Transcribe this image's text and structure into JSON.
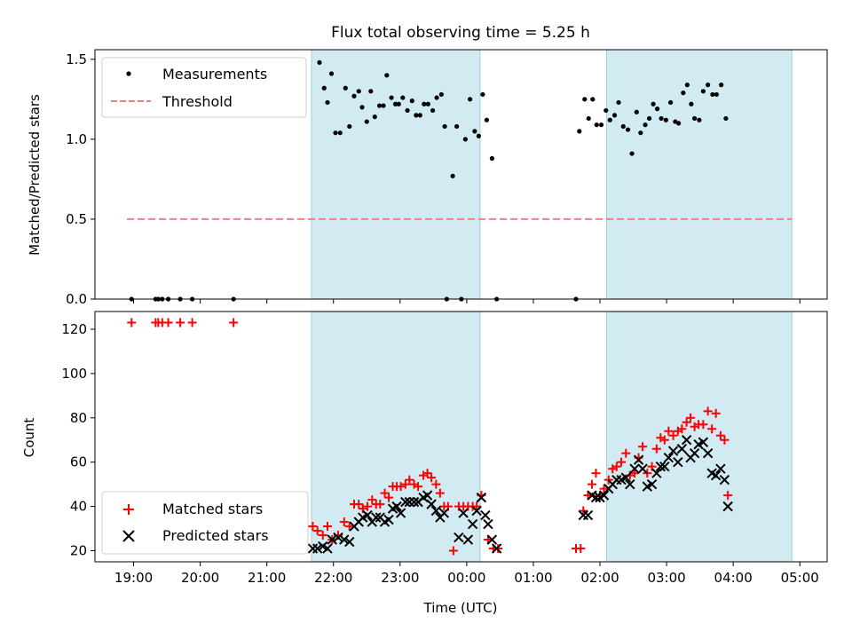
{
  "chart_data": [
    {
      "type": "scatter",
      "title": "Flux total observing time = 5.25 h",
      "ylabel": "Matched/Predicted stars",
      "xlim": [
        -0.58,
        10.41
      ],
      "ylim": [
        0,
        1.56
      ],
      "yticks": [
        0.0,
        0.5,
        1.0,
        1.5
      ],
      "ytick_labels": [
        "0.0",
        "0.5",
        "1.0",
        "1.5"
      ],
      "legend": {
        "position": "top-left",
        "entries": [
          "Measurements",
          "Threshold"
        ]
      },
      "threshold": {
        "y": 0.5,
        "x_start": -0.1,
        "x_end": 9.88,
        "color": "#f08080"
      },
      "series": [
        {
          "name": "Measurements",
          "color": "#000000",
          "points": [
            [
              -0.03,
              0
            ],
            [
              0.33,
              0
            ],
            [
              0.37,
              0
            ],
            [
              0.43,
              0
            ],
            [
              0.52,
              0
            ],
            [
              0.7,
              0
            ],
            [
              0.88,
              0
            ],
            [
              1.5,
              0
            ],
            [
              2.79,
              1.48
            ],
            [
              2.86,
              1.32
            ],
            [
              2.91,
              1.23
            ],
            [
              2.97,
              1.41
            ],
            [
              3.03,
              1.04
            ],
            [
              3.1,
              1.04
            ],
            [
              3.18,
              1.32
            ],
            [
              3.24,
              1.08
            ],
            [
              3.31,
              1.27
            ],
            [
              3.38,
              1.3
            ],
            [
              3.43,
              1.2
            ],
            [
              3.5,
              1.11
            ],
            [
              3.56,
              1.3
            ],
            [
              3.62,
              1.14
            ],
            [
              3.69,
              1.21
            ],
            [
              3.75,
              1.21
            ],
            [
              3.8,
              1.4
            ],
            [
              3.87,
              1.26
            ],
            [
              3.93,
              1.22
            ],
            [
              3.98,
              1.22
            ],
            [
              4.04,
              1.26
            ],
            [
              4.11,
              1.18
            ],
            [
              4.18,
              1.24
            ],
            [
              4.24,
              1.15
            ],
            [
              4.3,
              1.15
            ],
            [
              4.36,
              1.22
            ],
            [
              4.42,
              1.22
            ],
            [
              4.49,
              1.18
            ],
            [
              4.55,
              1.26
            ],
            [
              4.62,
              1.28
            ],
            [
              4.67,
              1.08
            ],
            [
              4.7,
              0
            ],
            [
              4.79,
              0.77
            ],
            [
              4.85,
              1.08
            ],
            [
              4.92,
              0
            ],
            [
              4.98,
              1.0
            ],
            [
              5.05,
              1.25
            ],
            [
              5.12,
              1.05
            ],
            [
              5.18,
              1.02
            ],
            [
              5.24,
              1.28
            ],
            [
              5.3,
              1.12
            ],
            [
              5.38,
              0.88
            ],
            [
              5.45,
              0
            ],
            [
              6.64,
              0
            ],
            [
              6.69,
              1.05
            ],
            [
              6.77,
              1.25
            ],
            [
              6.83,
              1.13
            ],
            [
              6.89,
              1.25
            ],
            [
              6.95,
              1.09
            ],
            [
              7.02,
              1.09
            ],
            [
              7.09,
              1.18
            ],
            [
              7.15,
              1.12
            ],
            [
              7.22,
              1.15
            ],
            [
              7.28,
              1.23
            ],
            [
              7.35,
              1.08
            ],
            [
              7.42,
              1.06
            ],
            [
              7.48,
              0.91
            ],
            [
              7.55,
              1.17
            ],
            [
              7.61,
              1.04
            ],
            [
              7.68,
              1.09
            ],
            [
              7.74,
              1.13
            ],
            [
              7.8,
              1.22
            ],
            [
              7.86,
              1.19
            ],
            [
              7.92,
              1.13
            ],
            [
              7.99,
              1.12
            ],
            [
              8.06,
              1.23
            ],
            [
              8.13,
              1.11
            ],
            [
              8.18,
              1.1
            ],
            [
              8.25,
              1.29
            ],
            [
              8.31,
              1.34
            ],
            [
              8.37,
              1.22
            ],
            [
              8.42,
              1.13
            ],
            [
              8.49,
              1.12
            ],
            [
              8.55,
              1.3
            ],
            [
              8.62,
              1.34
            ],
            [
              8.69,
              1.28
            ],
            [
              8.75,
              1.28
            ],
            [
              8.82,
              1.34
            ],
            [
              8.89,
              1.13
            ]
          ]
        }
      ],
      "shaded_regions": [
        [
          2.67,
          5.2
        ],
        [
          7.1,
          9.88
        ]
      ]
    },
    {
      "type": "scatter",
      "xlabel": "Time (UTC)",
      "ylabel": "Count",
      "xlim": [
        -0.58,
        10.41
      ],
      "ylim": [
        15,
        128
      ],
      "yticks": [
        20,
        40,
        60,
        80,
        100,
        120
      ],
      "ytick_labels": [
        "20",
        "40",
        "60",
        "80",
        "100",
        "120"
      ],
      "xticks": [
        0,
        1,
        2,
        3,
        4,
        5,
        6,
        7,
        8,
        9,
        10
      ],
      "xtick_labels": [
        "19:00",
        "20:00",
        "21:00",
        "22:00",
        "23:00",
        "00:00",
        "01:00",
        "02:00",
        "03:00",
        "04:00",
        "05:00"
      ],
      "legend": {
        "position": "bottom-left",
        "entries": [
          "Matched stars",
          "Predicted stars"
        ]
      },
      "shaded_regions": [
        [
          2.67,
          5.2
        ],
        [
          7.1,
          9.88
        ]
      ],
      "series": [
        {
          "name": "Matched stars",
          "marker": "+",
          "color": "#ff0000",
          "points": [
            [
              -0.03,
              123
            ],
            [
              0.33,
              123
            ],
            [
              0.37,
              123
            ],
            [
              0.43,
              123
            ],
            [
              0.52,
              123
            ],
            [
              0.7,
              123
            ],
            [
              0.88,
              123
            ],
            [
              1.5,
              123
            ],
            [
              2.69,
              31
            ],
            [
              2.76,
              29
            ],
            [
              2.84,
              27
            ],
            [
              2.91,
              31
            ],
            [
              2.98,
              25
            ],
            [
              3.07,
              27
            ],
            [
              3.16,
              33
            ],
            [
              3.24,
              31
            ],
            [
              3.31,
              41
            ],
            [
              3.38,
              41
            ],
            [
              3.44,
              39
            ],
            [
              3.51,
              40
            ],
            [
              3.58,
              43
            ],
            [
              3.64,
              41
            ],
            [
              3.7,
              41
            ],
            [
              3.77,
              46
            ],
            [
              3.83,
              44
            ],
            [
              3.89,
              49
            ],
            [
              3.95,
              49
            ],
            [
              4.01,
              49
            ],
            [
              4.08,
              50
            ],
            [
              4.14,
              52
            ],
            [
              4.21,
              50
            ],
            [
              4.27,
              49
            ],
            [
              4.35,
              54
            ],
            [
              4.41,
              55
            ],
            [
              4.47,
              53
            ],
            [
              4.54,
              50
            ],
            [
              4.6,
              46
            ],
            [
              4.66,
              40
            ],
            [
              4.72,
              40
            ],
            [
              4.8,
              20
            ],
            [
              4.88,
              40
            ],
            [
              4.95,
              40
            ],
            [
              5.02,
              40
            ],
            [
              5.09,
              40
            ],
            [
              5.15,
              40
            ],
            [
              5.22,
              45
            ],
            [
              5.32,
              25
            ],
            [
              5.4,
              21
            ],
            [
              5.47,
              21
            ],
            [
              6.64,
              21
            ],
            [
              6.71,
              21
            ],
            [
              6.75,
              38
            ],
            [
              6.82,
              45
            ],
            [
              6.88,
              50
            ],
            [
              6.94,
              55
            ],
            [
              7.0,
              45
            ],
            [
              7.06,
              48
            ],
            [
              7.13,
              52
            ],
            [
              7.19,
              57
            ],
            [
              7.25,
              58
            ],
            [
              7.32,
              60
            ],
            [
              7.39,
              64
            ],
            [
              7.45,
              54
            ],
            [
              7.52,
              55
            ],
            [
              7.58,
              62
            ],
            [
              7.64,
              67
            ],
            [
              7.71,
              55
            ],
            [
              7.78,
              58
            ],
            [
              7.85,
              66
            ],
            [
              7.91,
              71
            ],
            [
              7.97,
              70
            ],
            [
              8.03,
              74
            ],
            [
              8.1,
              72
            ],
            [
              8.17,
              74
            ],
            [
              8.23,
              75
            ],
            [
              8.3,
              78
            ],
            [
              8.36,
              80
            ],
            [
              8.42,
              76
            ],
            [
              8.48,
              77
            ],
            [
              8.55,
              77
            ],
            [
              8.62,
              83
            ],
            [
              8.68,
              75
            ],
            [
              8.74,
              82
            ],
            [
              8.81,
              72
            ],
            [
              8.87,
              70
            ],
            [
              8.92,
              45
            ]
          ]
        },
        {
          "name": "Predicted stars",
          "marker": "x",
          "color": "#000000",
          "points": [
            [
              2.69,
              21
            ],
            [
              2.76,
              21
            ],
            [
              2.84,
              22
            ],
            [
              2.91,
              21
            ],
            [
              2.98,
              25
            ],
            [
              3.07,
              26
            ],
            [
              3.16,
              25
            ],
            [
              3.24,
              24
            ],
            [
              3.31,
              31
            ],
            [
              3.38,
              33
            ],
            [
              3.44,
              35
            ],
            [
              3.51,
              36
            ],
            [
              3.58,
              33
            ],
            [
              3.64,
              35
            ],
            [
              3.7,
              35
            ],
            [
              3.77,
              33
            ],
            [
              3.83,
              34
            ],
            [
              3.89,
              39
            ],
            [
              3.95,
              40
            ],
            [
              4.01,
              37
            ],
            [
              4.08,
              42
            ],
            [
              4.14,
              42
            ],
            [
              4.21,
              42
            ],
            [
              4.27,
              42
            ],
            [
              4.35,
              44
            ],
            [
              4.41,
              45
            ],
            [
              4.47,
              41
            ],
            [
              4.54,
              38
            ],
            [
              4.6,
              35
            ],
            [
              4.66,
              37
            ],
            [
              4.88,
              26
            ],
            [
              4.95,
              37
            ],
            [
              5.02,
              25
            ],
            [
              5.09,
              32
            ],
            [
              5.15,
              38
            ],
            [
              5.22,
              44
            ],
            [
              5.28,
              36
            ],
            [
              5.32,
              32
            ],
            [
              5.38,
              25
            ],
            [
              5.45,
              21
            ],
            [
              6.75,
              36
            ],
            [
              6.82,
              36
            ],
            [
              6.88,
              45
            ],
            [
              6.94,
              44
            ],
            [
              7.0,
              44
            ],
            [
              7.06,
              45
            ],
            [
              7.13,
              48
            ],
            [
              7.19,
              50
            ],
            [
              7.25,
              52
            ],
            [
              7.32,
              52
            ],
            [
              7.39,
              53
            ],
            [
              7.45,
              50
            ],
            [
              7.52,
              57
            ],
            [
              7.58,
              61
            ],
            [
              7.64,
              57
            ],
            [
              7.71,
              49
            ],
            [
              7.78,
              50
            ],
            [
              7.85,
              55
            ],
            [
              7.91,
              58
            ],
            [
              7.97,
              58
            ],
            [
              8.03,
              62
            ],
            [
              8.1,
              65
            ],
            [
              8.17,
              60
            ],
            [
              8.23,
              66
            ],
            [
              8.3,
              70
            ],
            [
              8.36,
              62
            ],
            [
              8.42,
              64
            ],
            [
              8.48,
              68
            ],
            [
              8.55,
              69
            ],
            [
              8.62,
              64
            ],
            [
              8.68,
              55
            ],
            [
              8.74,
              54
            ],
            [
              8.81,
              57
            ],
            [
              8.87,
              52
            ],
            [
              8.92,
              40
            ]
          ]
        }
      ]
    }
  ],
  "colors": {
    "shade": "#add8e6",
    "shade_edge": "#9ecfdc"
  }
}
